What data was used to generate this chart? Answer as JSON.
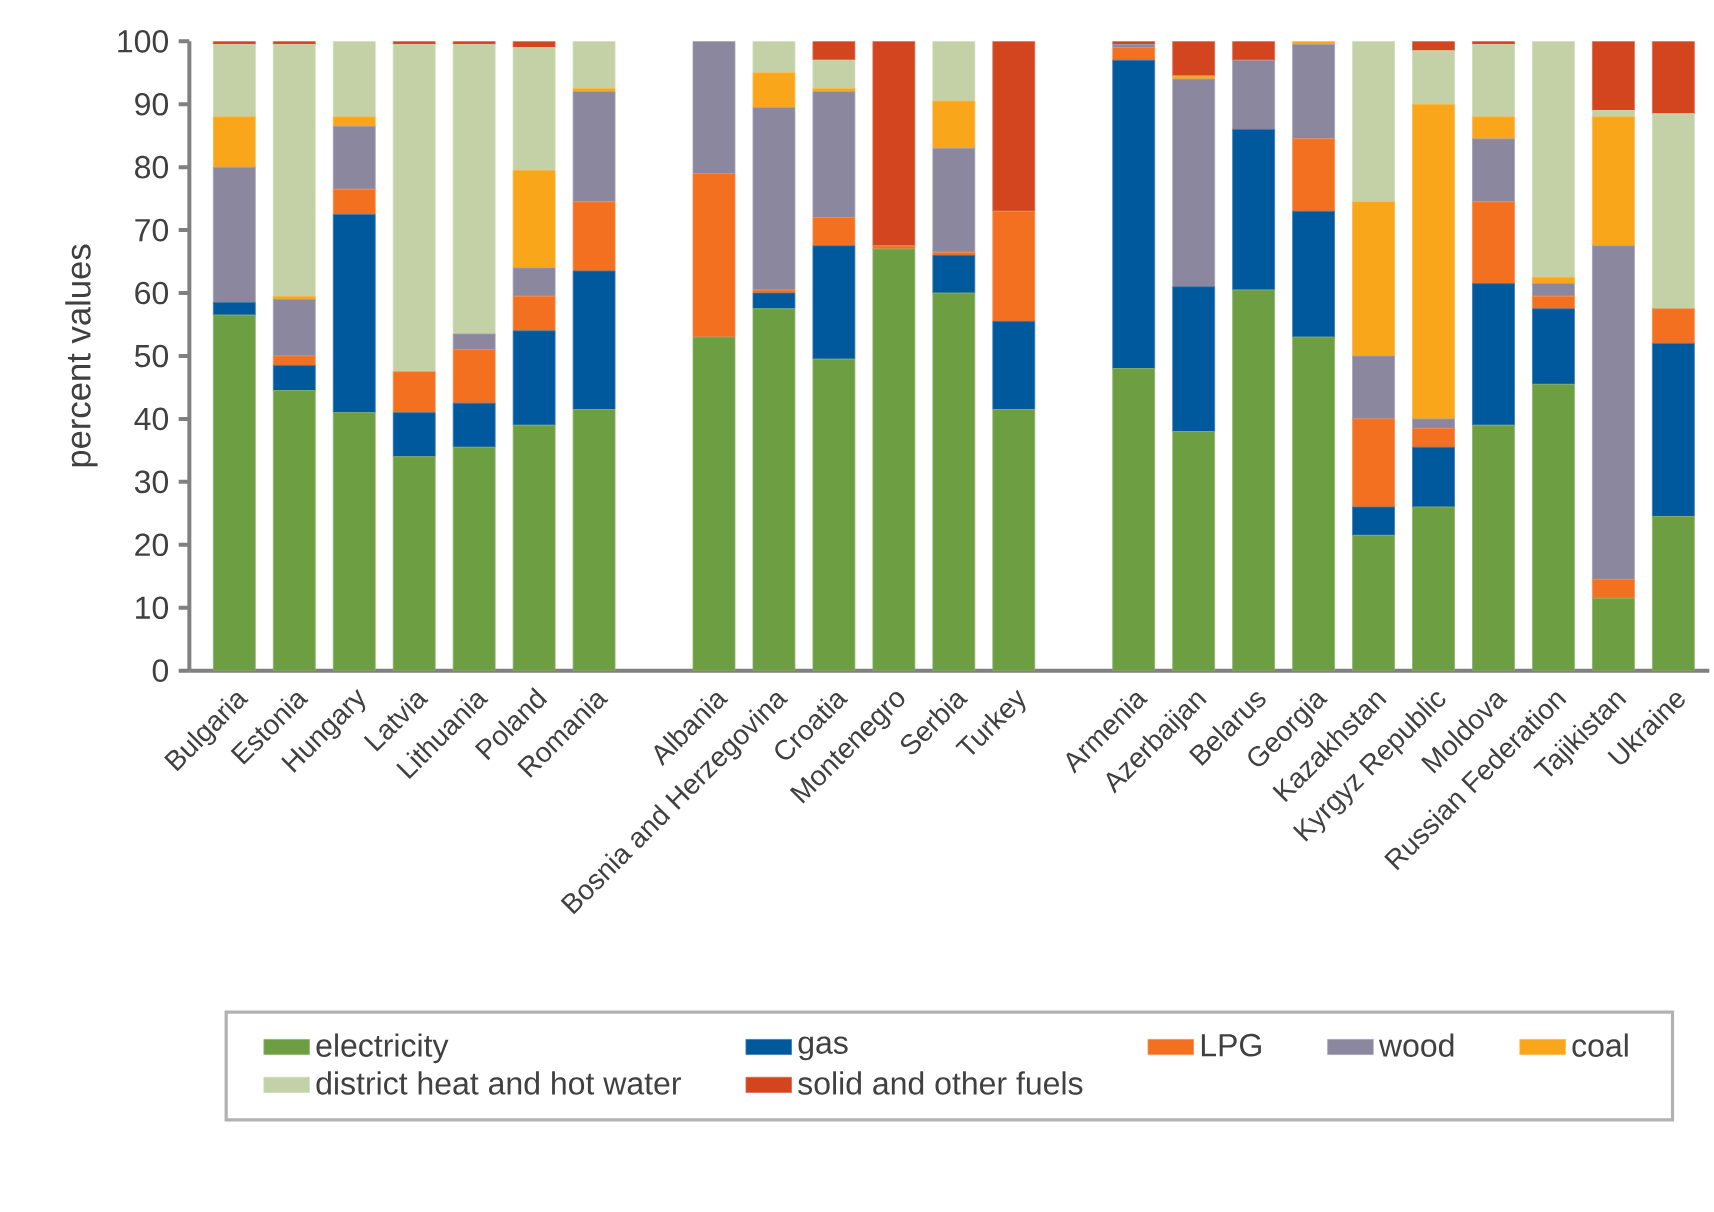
{
  "chart_data": {
    "type": "bar",
    "stacked": true,
    "ylabel": "percent values",
    "ylim": [
      0,
      100
    ],
    "yticks": [
      0,
      10,
      20,
      30,
      40,
      50,
      60,
      70,
      80,
      90,
      100
    ],
    "legend": "bottom",
    "categories": [
      "Bulgaria",
      "Estonia",
      "Hungary",
      "Latvia",
      "Lithuania",
      "Poland",
      "Romania",
      null,
      "Albania",
      "Bosnia and Herzegovina",
      "Croatia",
      "Montenegro",
      "Serbia",
      "Turkey",
      null,
      "Armenia",
      "Azerbaijan",
      "Belarus",
      "Georgia",
      "Kazakhstan",
      "Kyrgyz Republic",
      "Moldova",
      "Russian Federation",
      "Tajikistan",
      "Ukraine"
    ],
    "series": [
      {
        "name": "electricity",
        "color": "#6d9f42",
        "values": [
          56.5,
          44.5,
          41,
          34,
          35.5,
          39,
          41.5,
          null,
          53,
          57.5,
          49.5,
          67,
          60,
          41.5,
          null,
          48,
          38,
          60.5,
          53,
          21.5,
          26,
          39,
          45.5,
          11.5,
          24.5
        ]
      },
      {
        "name": "gas",
        "color": "#00599c",
        "values": [
          2,
          4,
          31.5,
          7,
          7,
          15,
          22,
          null,
          0,
          2.5,
          18,
          0,
          6,
          14,
          null,
          49,
          23,
          25.5,
          20,
          4.5,
          9.5,
          22.5,
          12,
          0,
          27.5
        ]
      },
      {
        "name": "LPG",
        "color": "#f37021",
        "values": [
          0,
          1.5,
          4,
          6.5,
          8.5,
          5.5,
          11,
          null,
          26,
          0.5,
          4.5,
          0.5,
          0.5,
          17.5,
          null,
          2,
          0,
          0,
          11.5,
          14,
          3,
          13,
          2,
          3,
          5.5
        ]
      },
      {
        "name": "wood",
        "color": "#8b879e",
        "values": [
          21.5,
          9,
          10,
          0,
          2.5,
          4.5,
          17.5,
          null,
          21,
          29,
          20,
          0,
          16.5,
          0,
          null,
          0.5,
          33,
          11,
          15,
          10,
          1.5,
          10,
          2,
          53,
          0
        ]
      },
      {
        "name": "coal",
        "color": "#f9a61a",
        "values": [
          8,
          0.5,
          1.5,
          0,
          0,
          15.5,
          0.5,
          null,
          0,
          5.5,
          0.5,
          0,
          7.5,
          0,
          null,
          0,
          0.5,
          0,
          0.5,
          24.5,
          50,
          3.5,
          1,
          20.5,
          0
        ]
      },
      {
        "name": "district heat and hot water",
        "color": "#c4d1a6",
        "values": [
          11.5,
          40,
          12,
          52,
          46,
          19.5,
          7.5,
          null,
          0,
          5,
          4.5,
          0,
          9.5,
          0,
          null,
          0,
          0,
          0,
          0,
          25.5,
          8.5,
          11.5,
          37.5,
          1,
          31
        ]
      },
      {
        "name": "solid and other fuels",
        "color": "#d2451e",
        "values": [
          0.5,
          0.5,
          0,
          0.5,
          0.5,
          1,
          0,
          null,
          0,
          0,
          3,
          32.5,
          0,
          27,
          null,
          0.5,
          5.5,
          3,
          0,
          0,
          1.5,
          0.5,
          0,
          11,
          11.5
        ]
      }
    ]
  }
}
